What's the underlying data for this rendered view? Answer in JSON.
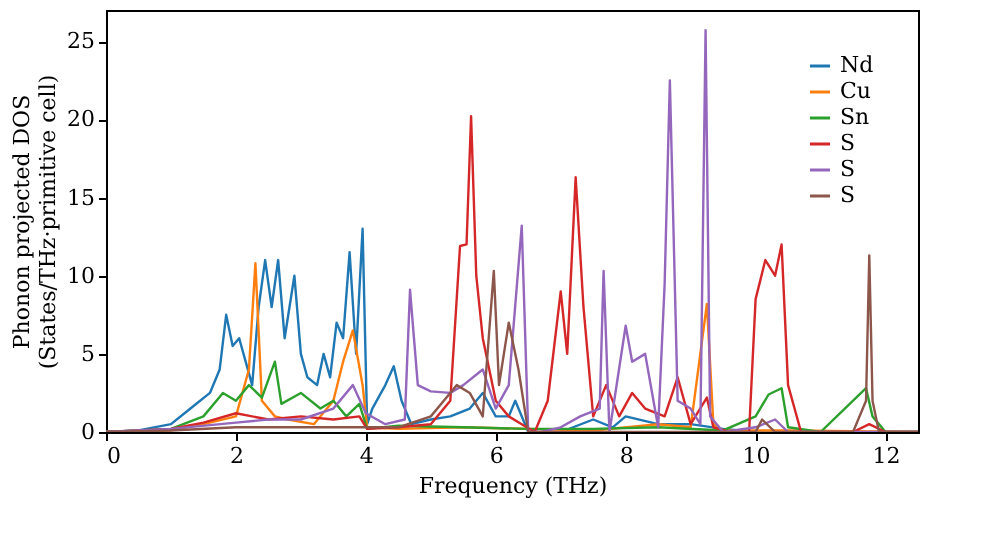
{
  "chart_data": {
    "type": "line",
    "xlabel": "Frequency (THz)",
    "ylabel": "Phonon projected DOS\n(States/THz·primitive cell)",
    "xlim": [
      0,
      12.5
    ],
    "ylim": [
      0,
      27
    ],
    "xticks": [
      0,
      2,
      4,
      6,
      8,
      10,
      12
    ],
    "yticks": [
      0,
      5,
      10,
      15,
      20,
      25
    ],
    "grid": false,
    "legend": "top right",
    "series": [
      {
        "name": "Nd",
        "color": "#1f77b4",
        "x": [
          0,
          0.5,
          1.0,
          1.3,
          1.6,
          1.75,
          1.85,
          1.95,
          2.05,
          2.15,
          2.25,
          2.35,
          2.45,
          2.55,
          2.65,
          2.75,
          2.9,
          3.0,
          3.1,
          3.25,
          3.35,
          3.45,
          3.55,
          3.65,
          3.75,
          3.85,
          3.95,
          4.02,
          4.1,
          4.3,
          4.43,
          4.55,
          4.7,
          5.0,
          5.3,
          5.6,
          5.8,
          6.0,
          6.2,
          6.3,
          6.5,
          7.0,
          7.5,
          7.8,
          8.0,
          8.5,
          9.0,
          9.5,
          10.0,
          12.5
        ],
        "values": [
          0,
          0.1,
          0.5,
          1.5,
          2.5,
          4,
          7.5,
          5.5,
          6,
          4.5,
          3,
          8,
          11,
          8,
          11,
          6,
          10,
          5,
          3.5,
          3,
          5,
          3.5,
          7,
          6,
          11.5,
          5,
          13,
          0.5,
          1.5,
          3,
          4.2,
          2,
          0.5,
          0.8,
          1,
          1.5,
          2.5,
          1,
          1,
          2,
          0,
          0,
          0.8,
          0.3,
          1,
          0.5,
          0.5,
          0.2,
          0,
          0
        ]
      },
      {
        "name": "Cu",
        "color": "#ff7f0e",
        "x": [
          0,
          1.0,
          1.5,
          2.0,
          2.2,
          2.3,
          2.4,
          2.6,
          2.8,
          3.2,
          3.5,
          3.65,
          3.8,
          3.95,
          4.02,
          4.5,
          5.5,
          6.5,
          7.5,
          8.5,
          9.0,
          9.25,
          9.35,
          9.5,
          10.5,
          12.5
        ],
        "values": [
          0,
          0.1,
          0.5,
          1,
          4,
          10.8,
          2,
          1,
          0.8,
          0.5,
          2,
          4.5,
          6.5,
          3,
          0.3,
          0.2,
          0.3,
          0.2,
          0.1,
          0.5,
          0.3,
          8.2,
          0.5,
          0.1,
          0.1,
          0
        ]
      },
      {
        "name": "Sn",
        "color": "#2ca02c",
        "x": [
          0,
          1.0,
          1.5,
          1.8,
          2.0,
          2.2,
          2.4,
          2.6,
          2.7,
          3.0,
          3.3,
          3.5,
          3.7,
          3.9,
          4.02,
          4.5,
          5.5,
          6.5,
          7.5,
          8.5,
          9.5,
          10.0,
          10.2,
          10.4,
          10.5,
          11.0,
          11.7,
          11.8,
          12.0,
          12.5
        ],
        "values": [
          0,
          0.2,
          1,
          2.5,
          2,
          3,
          2.2,
          4.5,
          1.8,
          2.5,
          1.5,
          2,
          1,
          1.8,
          0.2,
          0.4,
          0.3,
          0.2,
          0.2,
          0.3,
          0.1,
          1,
          2.4,
          2.8,
          0.3,
          0,
          2.8,
          1,
          0,
          0
        ]
      },
      {
        "name": "S",
        "color": "#d62728",
        "x": [
          0,
          1.0,
          1.5,
          2.0,
          2.5,
          3.0,
          3.5,
          3.9,
          4.02,
          4.5,
          5.0,
          5.3,
          5.45,
          5.55,
          5.62,
          5.7,
          5.8,
          5.9,
          6.0,
          6.2,
          6.4,
          6.6,
          6.8,
          7.0,
          7.1,
          7.23,
          7.35,
          7.5,
          7.7,
          7.9,
          8.1,
          8.3,
          8.6,
          8.8,
          9.0,
          9.25,
          9.35,
          9.6,
          9.9,
          10.0,
          10.15,
          10.3,
          10.4,
          10.5,
          10.7,
          11.5,
          11.75,
          12.0,
          12.5
        ],
        "values": [
          0,
          0.2,
          0.6,
          1.2,
          0.8,
          1,
          0.8,
          1,
          0.2,
          0.3,
          0.5,
          2,
          11.9,
          12,
          20.2,
          10,
          6,
          4,
          2,
          1,
          0.5,
          0,
          2,
          9,
          5,
          16.3,
          8,
          1,
          3,
          1,
          2.5,
          1.5,
          1,
          3.5,
          0.5,
          2.2,
          0.3,
          0,
          0,
          8.5,
          11,
          10,
          12,
          3,
          0,
          0,
          0.5,
          0,
          0
        ]
      },
      {
        "name": "S",
        "color": "#9467bd",
        "x": [
          0,
          1.0,
          2.0,
          2.5,
          3.0,
          3.5,
          3.8,
          4.0,
          4.3,
          4.6,
          4.68,
          4.8,
          5.0,
          5.3,
          5.5,
          5.8,
          6.0,
          6.2,
          6.4,
          6.5,
          6.7,
          7.0,
          7.3,
          7.6,
          7.66,
          7.75,
          8.0,
          8.1,
          8.3,
          8.5,
          8.6,
          8.68,
          8.8,
          9.0,
          9.15,
          9.23,
          9.3,
          9.5,
          10.0,
          10.3,
          10.5,
          12.0,
          12.5
        ],
        "values": [
          0,
          0.2,
          0.6,
          0.8,
          0.8,
          1.5,
          3,
          1.2,
          0.5,
          0.8,
          9.1,
          3,
          2.6,
          2.5,
          3,
          4,
          1.5,
          3,
          13.2,
          0,
          0,
          0.3,
          1,
          1.5,
          10.3,
          0,
          6.8,
          4.5,
          5,
          0.3,
          9.5,
          22.5,
          2,
          1.5,
          0.5,
          25.7,
          1,
          0,
          0.3,
          0.8,
          0,
          0,
          0
        ]
      },
      {
        "name": "S",
        "color": "#8c564b",
        "x": [
          0,
          1.0,
          2.0,
          3.0,
          4.0,
          4.5,
          5.0,
          5.2,
          5.4,
          5.6,
          5.8,
          5.97,
          6.05,
          6.2,
          6.35,
          6.5,
          7.0,
          8.0,
          10.0,
          10.1,
          10.3,
          11.5,
          11.7,
          11.75,
          11.8,
          11.9,
          12.5
        ],
        "values": [
          0,
          0.1,
          0.3,
          0.3,
          0.3,
          0.3,
          1,
          2,
          3,
          2.5,
          1,
          10.3,
          3,
          7,
          4,
          0,
          0,
          0,
          0,
          0.8,
          0,
          0,
          2,
          11.3,
          2,
          0,
          0
        ]
      }
    ]
  }
}
